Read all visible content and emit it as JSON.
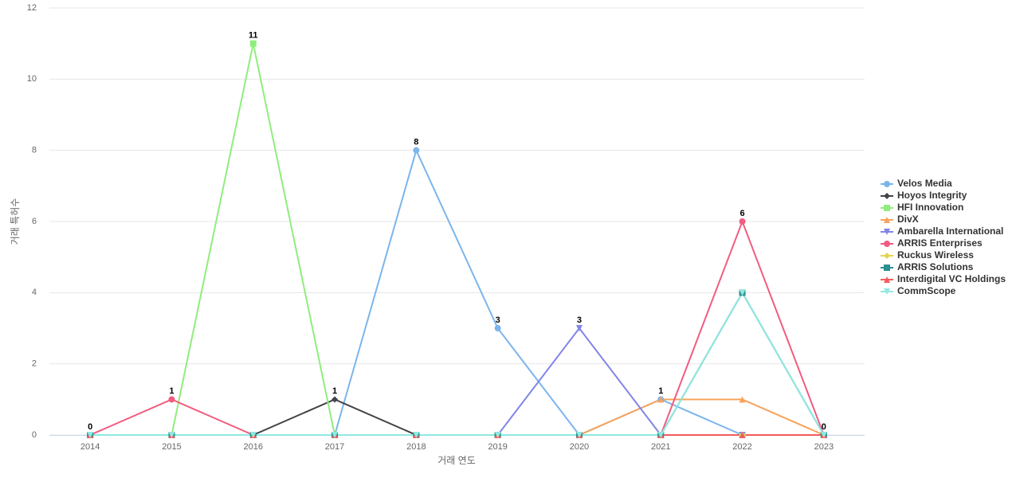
{
  "chart_data": {
    "type": "line",
    "x_label": "거래 연도",
    "y_label": "거래 특허수",
    "categories": [
      "2014",
      "2015",
      "2016",
      "2017",
      "2018",
      "2019",
      "2020",
      "2021",
      "2022",
      "2023"
    ],
    "ylim": [
      0,
      12
    ],
    "yticks": [
      0,
      2,
      4,
      6,
      8,
      10,
      12
    ],
    "grid": true,
    "series": [
      {
        "name": "Velos Media",
        "color": "#7cb5ec",
        "values": [
          0,
          0,
          0,
          0,
          8,
          3,
          0,
          1,
          0,
          0
        ]
      },
      {
        "name": "Hoyos Integrity",
        "color": "#434348",
        "values": [
          0,
          0,
          0,
          1,
          0,
          0,
          0,
          0,
          0,
          0
        ]
      },
      {
        "name": "HFI Innovation",
        "color": "#90ed7d",
        "values": [
          0,
          0,
          11,
          0,
          0,
          0,
          0,
          0,
          0,
          0
        ]
      },
      {
        "name": "DivX",
        "color": "#f7a35c",
        "values": [
          0,
          0,
          0,
          0,
          0,
          0,
          0,
          1,
          1,
          0
        ]
      },
      {
        "name": "Ambarella International",
        "color": "#8085e9",
        "values": [
          0,
          0,
          0,
          0,
          0,
          0,
          3,
          0,
          0,
          0
        ]
      },
      {
        "name": "ARRIS Enterprises",
        "color": "#f15c80",
        "values": [
          0,
          1,
          0,
          0,
          0,
          0,
          0,
          0,
          6,
          0
        ]
      },
      {
        "name": "Ruckus Wireless",
        "color": "#e4d354",
        "values": [
          0,
          0,
          0,
          0,
          0,
          0,
          0,
          0,
          0,
          0
        ]
      },
      {
        "name": "ARRIS Solutions",
        "color": "#2b908f",
        "values": [
          0,
          0,
          0,
          0,
          0,
          0,
          0,
          0,
          4,
          0
        ]
      },
      {
        "name": "Interdigital VC Holdings",
        "color": "#f45b5b",
        "values": [
          0,
          0,
          0,
          0,
          0,
          0,
          0,
          0,
          0,
          0
        ]
      },
      {
        "name": "CommScope",
        "color": "#91e8e1",
        "values": [
          0,
          0,
          0,
          0,
          0,
          0,
          0,
          0,
          4,
          0
        ]
      }
    ]
  }
}
